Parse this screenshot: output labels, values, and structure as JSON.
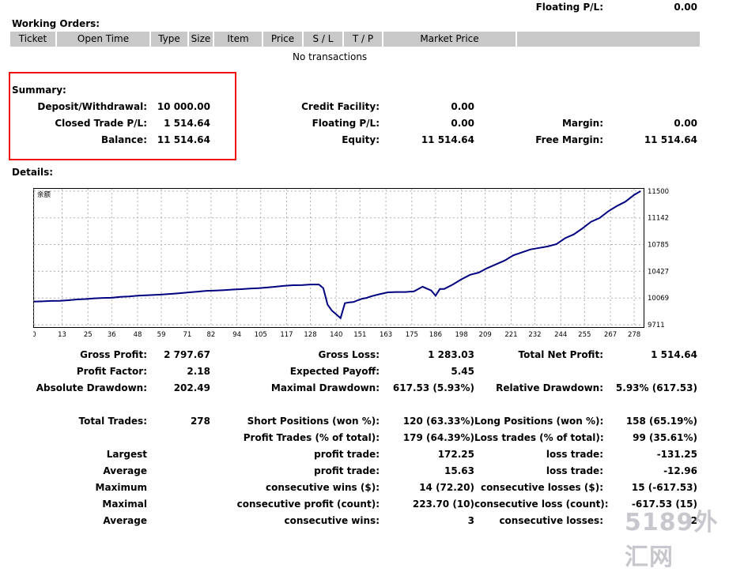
{
  "top": {
    "floating_label": "Floating P/L:",
    "floating_value": "0.00"
  },
  "working_orders": {
    "title": "Working Orders:",
    "columns": [
      "Ticket",
      "Open Time",
      "Type",
      "Size",
      "Item",
      "Price",
      "S / L",
      "T / P",
      "Market Price",
      ""
    ],
    "empty_text": "No transactions"
  },
  "summary": {
    "title": "Summary:",
    "deposit_label": "Deposit/Withdrawal:",
    "deposit_value": "10 000.00",
    "closed_label": "Closed Trade P/L:",
    "closed_value": "1 514.64",
    "balance_label": "Balance:",
    "balance_value": "11 514.64",
    "credit_label": "Credit Facility:",
    "credit_value": "0.00",
    "floating_label": "Floating P/L:",
    "floating_value": "0.00",
    "equity_label": "Equity:",
    "equity_value": "11 514.64",
    "margin_label": "Margin:",
    "margin_value": "0.00",
    "free_margin_label": "Free Margin:",
    "free_margin_value": "11 514.64"
  },
  "details": {
    "title": "Details:"
  },
  "chart_data": {
    "type": "line",
    "title": "余额",
    "x_ticks": [
      0,
      13,
      25,
      36,
      48,
      59,
      71,
      82,
      94,
      105,
      117,
      128,
      140,
      151,
      163,
      175,
      186,
      198,
      209,
      221,
      232,
      244,
      255,
      267,
      278
    ],
    "y_ticks": [
      9711,
      10069,
      10427,
      10785,
      11142,
      11500
    ],
    "xlim": [
      0,
      282
    ],
    "ylim": [
      9680,
      11520
    ],
    "grid": true,
    "series": [
      {
        "name": "",
        "x": [
          0,
          4,
          8,
          12,
          16,
          20,
          24,
          28,
          32,
          36,
          40,
          44,
          48,
          52,
          56,
          60,
          64,
          68,
          72,
          76,
          80,
          84,
          88,
          92,
          96,
          100,
          104,
          108,
          112,
          116,
          120,
          124,
          128,
          132,
          134,
          136,
          138,
          140,
          142,
          144,
          146,
          148,
          150,
          152,
          154,
          156,
          160,
          164,
          168,
          172,
          176,
          180,
          184,
          186,
          188,
          190,
          194,
          198,
          202,
          206,
          210,
          214,
          218,
          222,
          226,
          230,
          234,
          238,
          242,
          246,
          250,
          254,
          258,
          262,
          266,
          270,
          274,
          278,
          281
        ],
        "y": [
          10020,
          10025,
          10030,
          10032,
          10040,
          10050,
          10055,
          10065,
          10070,
          10072,
          10085,
          10090,
          10100,
          10105,
          10110,
          10118,
          10125,
          10135,
          10145,
          10155,
          10165,
          10170,
          10175,
          10182,
          10188,
          10195,
          10200,
          10210,
          10220,
          10232,
          10240,
          10242,
          10250,
          10250,
          10200,
          9980,
          9900,
          9850,
          9800,
          10000,
          10010,
          10015,
          10040,
          10060,
          10070,
          10090,
          10120,
          10145,
          10150,
          10150,
          10158,
          10220,
          10170,
          10100,
          10190,
          10190,
          10250,
          10320,
          10380,
          10410,
          10470,
          10520,
          10570,
          10640,
          10680,
          10720,
          10740,
          10760,
          10790,
          10870,
          10920,
          11000,
          11090,
          11140,
          11230,
          11300,
          11360,
          11450,
          11500
        ]
      }
    ]
  },
  "stats": {
    "gross_profit_label": "Gross Profit:",
    "gross_profit_value": "2 797.67",
    "gross_loss_label": "Gross Loss:",
    "gross_loss_value": "1 283.03",
    "total_net_label": "Total Net Profit:",
    "total_net_value": "1 514.64",
    "profit_factor_label": "Profit Factor:",
    "profit_factor_value": "2.18",
    "expected_payoff_label": "Expected Payoff:",
    "expected_payoff_value": "5.45",
    "abs_dd_label": "Absolute Drawdown:",
    "abs_dd_value": "202.49",
    "max_dd_label": "Maximal Drawdown:",
    "max_dd_value": "617.53 (5.93%)",
    "rel_dd_label": "Relative Drawdown:",
    "rel_dd_value": "5.93% (617.53)",
    "total_trades_label": "Total Trades:",
    "total_trades_value": "278",
    "short_label": "Short Positions (won %):",
    "short_value": "120 (63.33%)",
    "long_label": "Long Positions (won %):",
    "long_value": "158 (65.19%)",
    "profit_trades_label": "Profit Trades (% of total):",
    "profit_trades_value": "179 (64.39%)",
    "loss_trades_label": "Loss trades (% of total):",
    "loss_trades_value": "99 (35.61%)",
    "largest_label": "Largest",
    "largest_profit_label": "profit trade:",
    "largest_profit_value": "172.25",
    "largest_loss_label": "loss trade:",
    "largest_loss_value": "-131.25",
    "average_label": "Average",
    "average_profit_label": "profit trade:",
    "average_profit_value": "15.63",
    "average_loss_label": "loss trade:",
    "average_loss_value": "-12.96",
    "maximum_label": "Maximum",
    "max_wins_label": "consecutive wins ($):",
    "max_wins_value": "14 (72.20)",
    "max_losses_label": "consecutive losses ($):",
    "max_losses_value": "15 (-617.53)",
    "maximal_label": "Maximal",
    "maximal_profit_label": "consecutive profit (count):",
    "maximal_profit_value": "223.70 (10)",
    "maximal_loss_label": "consecutive loss (count):",
    "maximal_loss_value": "-617.53 (15)",
    "average2_label": "Average",
    "avg_wins_label": "consecutive wins:",
    "avg_wins_value": "3",
    "avg_losses_label": "consecutive losses:",
    "avg_losses_value": "2"
  },
  "watermark": "5189外汇网"
}
